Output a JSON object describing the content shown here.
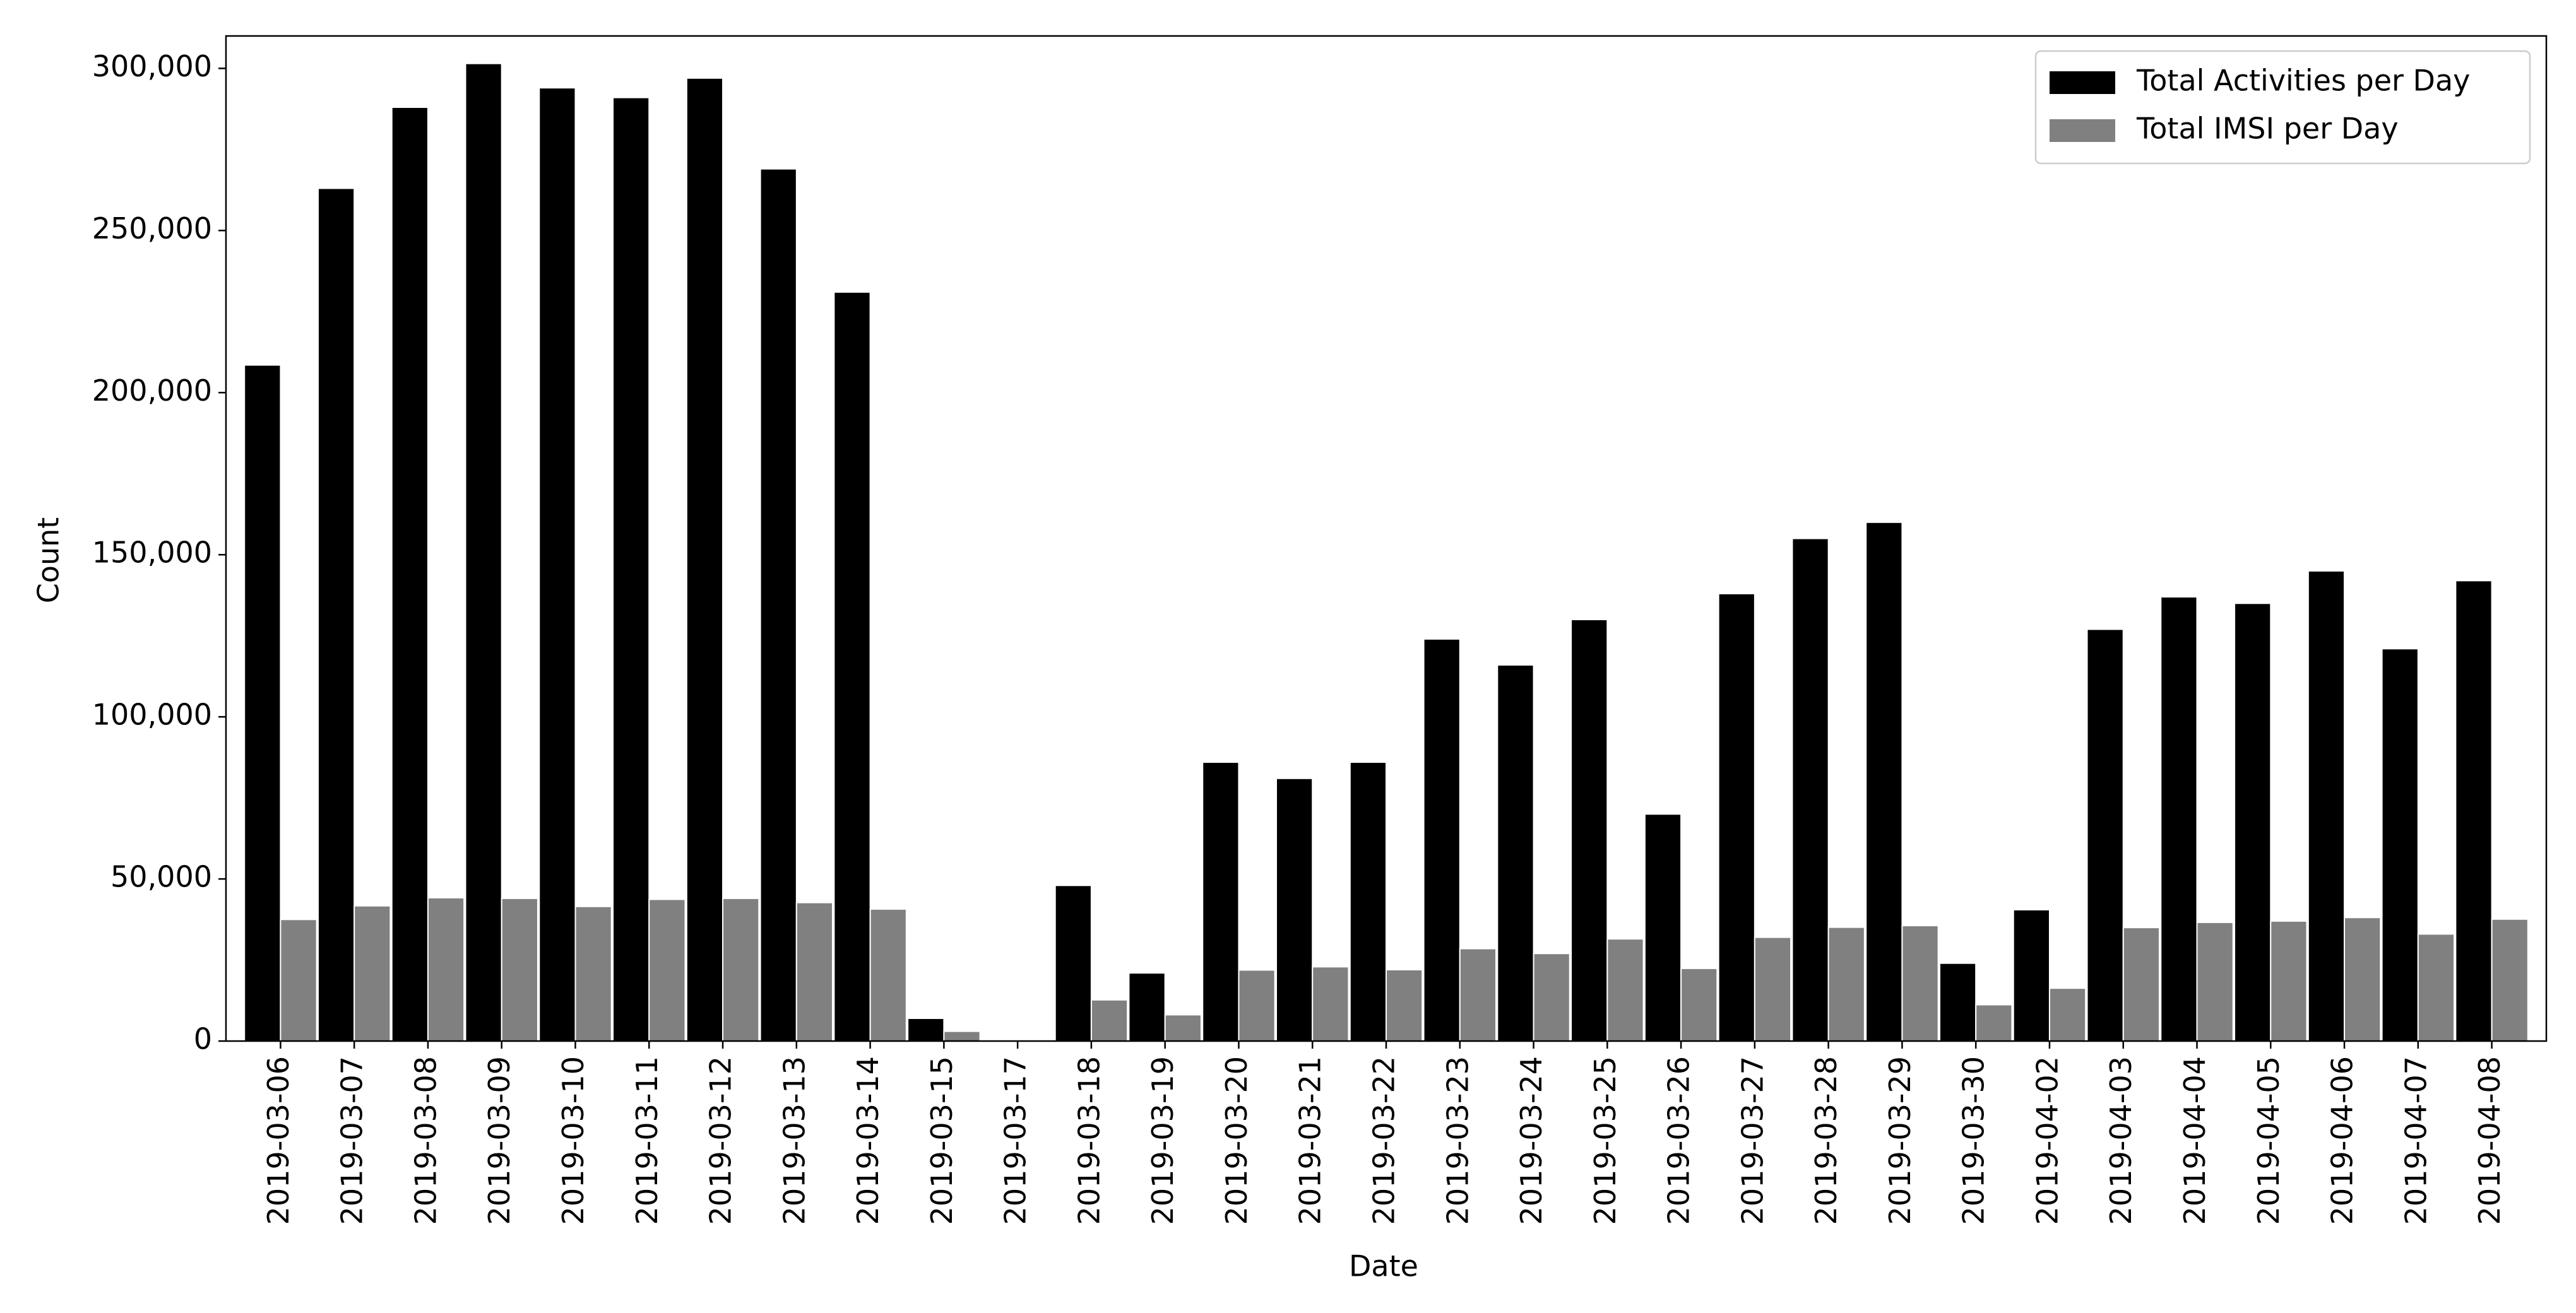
{
  "chart_data": {
    "type": "bar",
    "x_label": "Date",
    "y_label": "Count",
    "categories": [
      "2019-03-06",
      "2019-03-07",
      "2019-03-08",
      "2019-03-09",
      "2019-03-10",
      "2019-03-11",
      "2019-03-12",
      "2019-03-13",
      "2019-03-14",
      "2019-03-15",
      "2019-03-17",
      "2019-03-18",
      "2019-03-19",
      "2019-03-20",
      "2019-03-21",
      "2019-03-22",
      "2019-03-23",
      "2019-03-24",
      "2019-03-25",
      "2019-03-26",
      "2019-03-27",
      "2019-03-28",
      "2019-03-29",
      "2019-03-30",
      "2019-04-02",
      "2019-04-03",
      "2019-04-04",
      "2019-04-05",
      "2019-04-06",
      "2019-04-07",
      "2019-04-08"
    ],
    "series": [
      {
        "name": "Total Activities per Day",
        "color": "#000000",
        "values": [
          208500,
          263000,
          288000,
          301500,
          294000,
          291000,
          297000,
          269000,
          231000,
          7000,
          300,
          48000,
          21000,
          86000,
          81000,
          86000,
          124000,
          116000,
          130000,
          70000,
          138000,
          155000,
          160000,
          24000,
          40500,
          127000,
          137000,
          135000,
          145000,
          121000,
          142000
        ]
      },
      {
        "name": "Total IMSI per Day",
        "color": "#808080",
        "values": [
          37500,
          41700,
          44200,
          44000,
          41500,
          43700,
          44000,
          42700,
          40700,
          3000,
          100,
          12700,
          8100,
          21900,
          22900,
          22000,
          28500,
          27000,
          31500,
          22400,
          32000,
          35100,
          35600,
          11200,
          16300,
          35000,
          36600,
          37000,
          38100,
          33000,
          37600
        ]
      }
    ],
    "ylim": [
      0,
      310000
    ],
    "yticks": [
      0,
      {
        "value": 50000,
        "label": "50,000"
      },
      {
        "value": 100000,
        "label": "100,000"
      },
      {
        "value": 150000,
        "label": "150,000"
      },
      {
        "value": 200000,
        "label": "200,000"
      },
      {
        "value": 250000,
        "label": "250,000"
      },
      {
        "value": 300000,
        "label": "300,000"
      }
    ],
    "grid": false,
    "legend": "upper right"
  }
}
